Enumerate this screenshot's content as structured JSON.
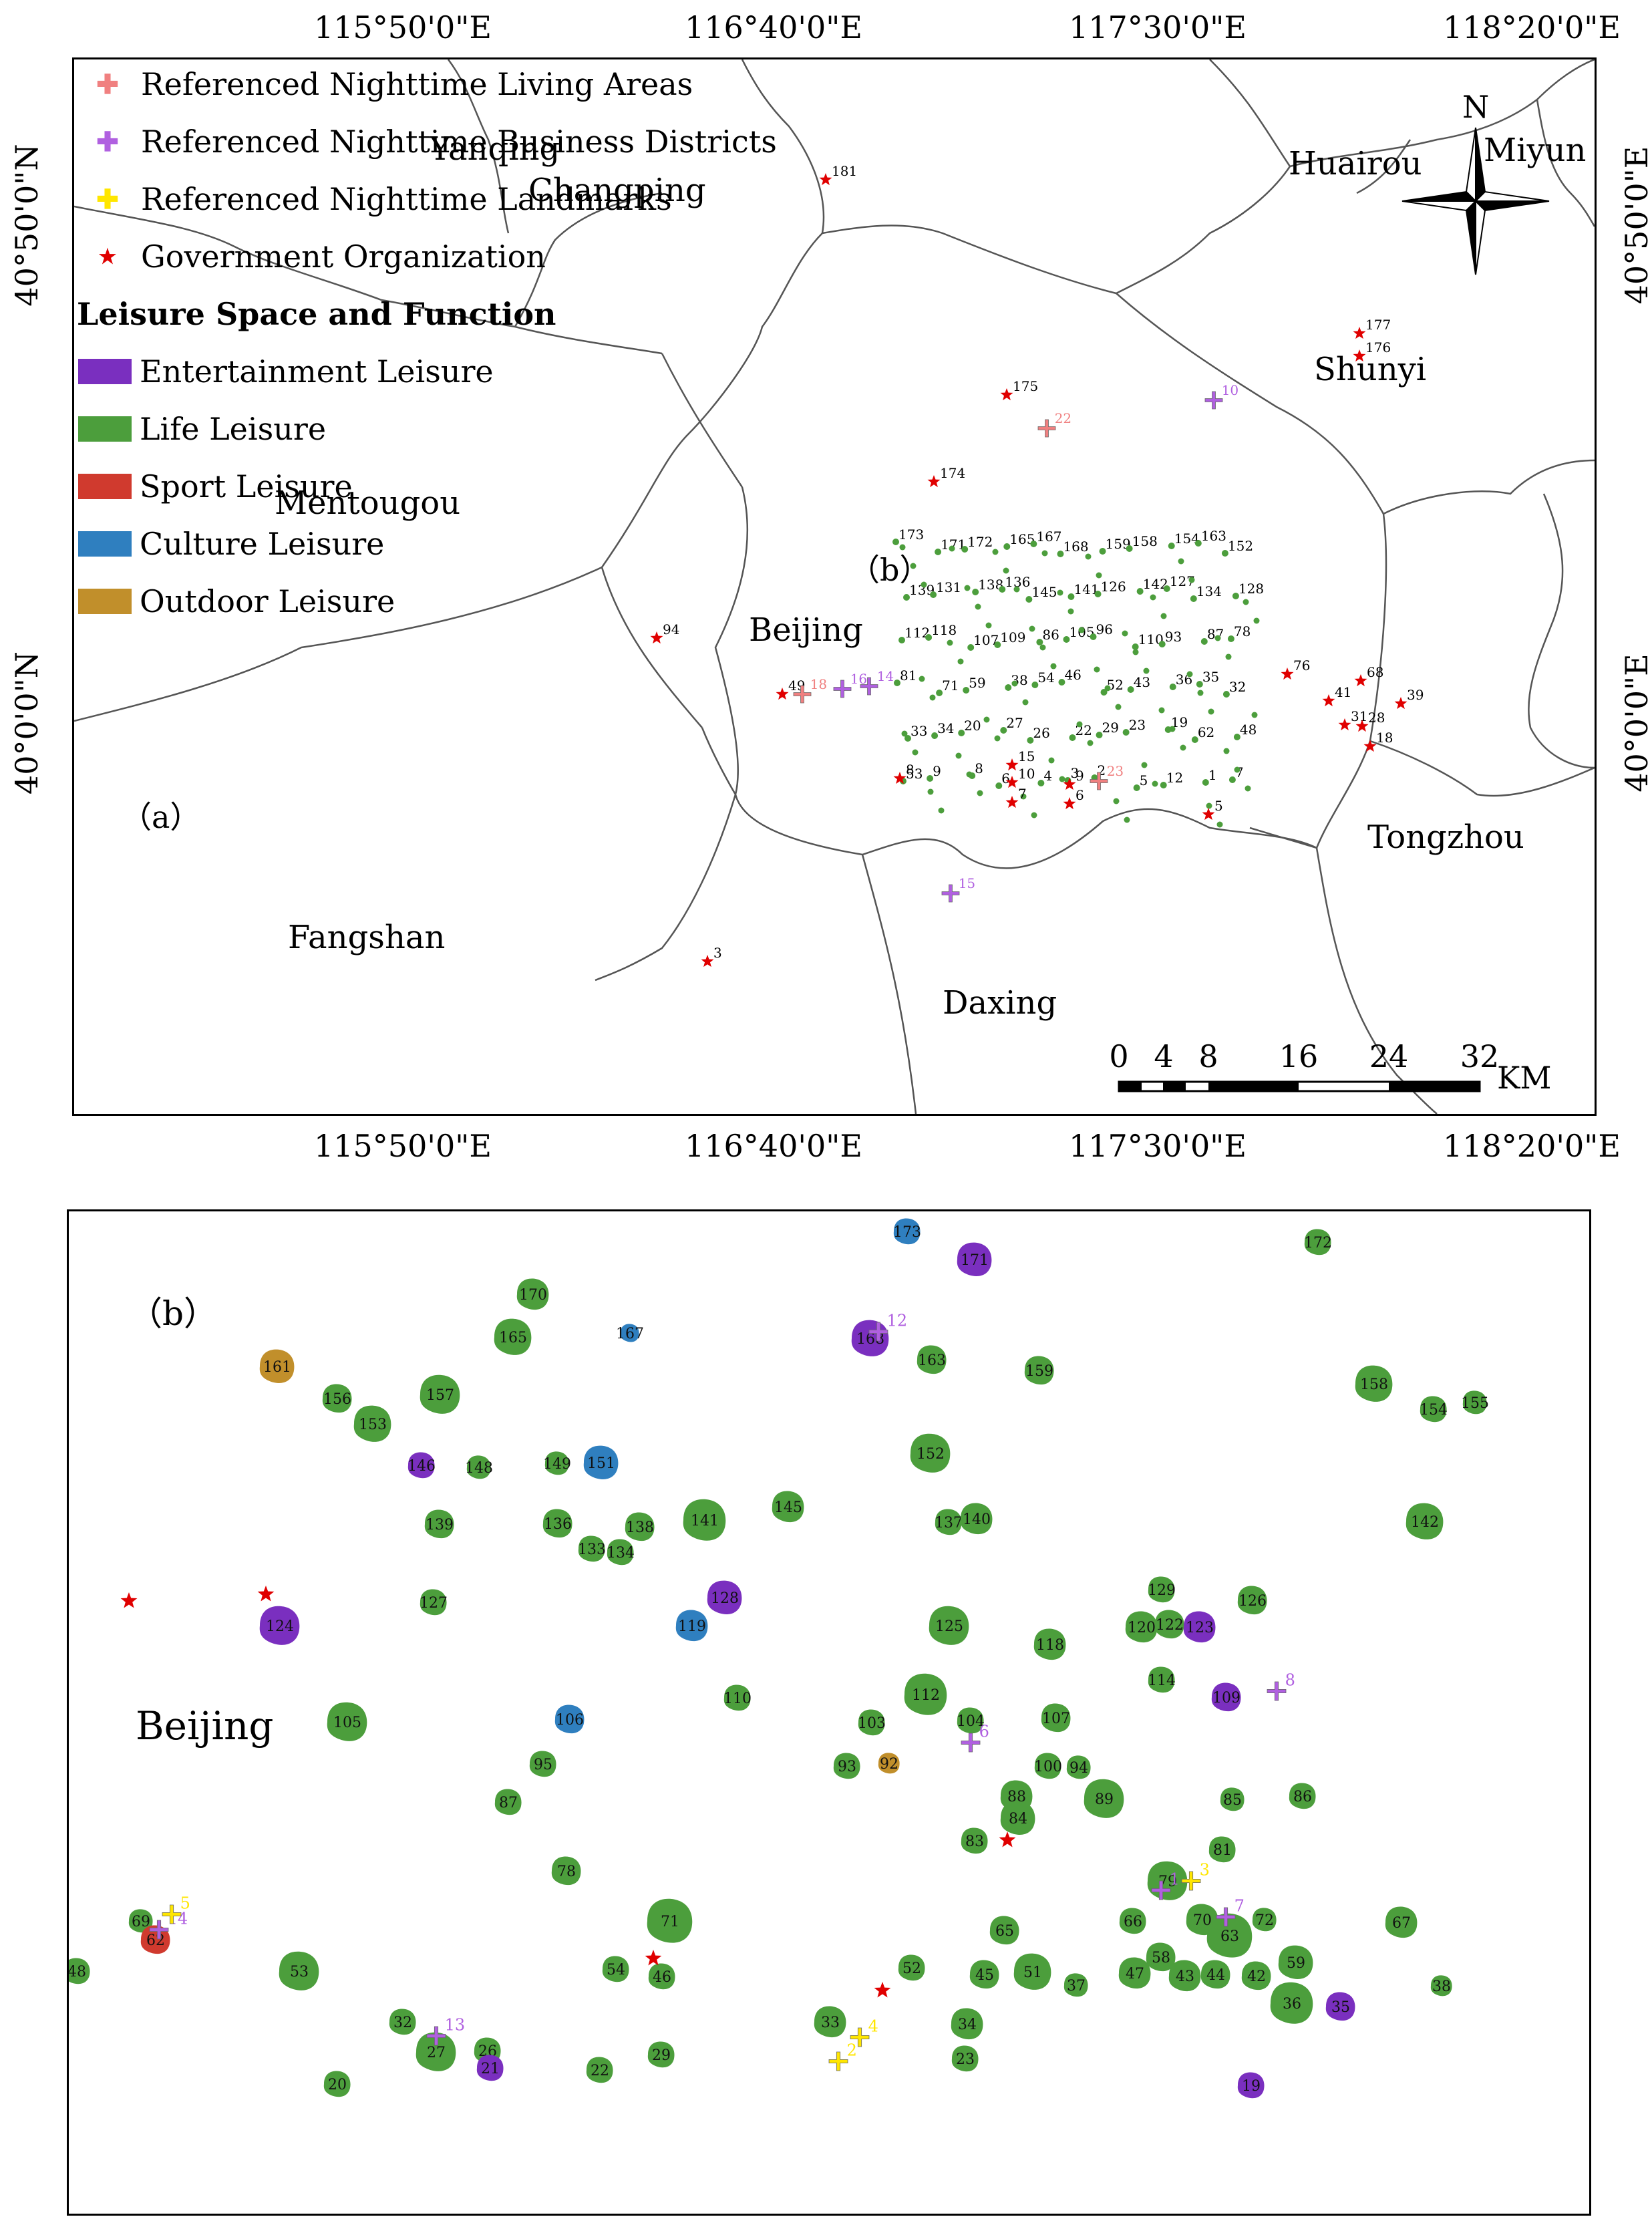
{
  "map_a": {
    "panel_label": "（a）",
    "top_longitudes": [
      "115°50'0\"E",
      "116°40'0\"E",
      "117°30'0\"E",
      "118°20'0\"E"
    ],
    "bottom_longitudes": [
      "115°50'0\"E",
      "116°40'0\"E",
      "117°30'0\"E",
      "118°20'0\"E"
    ],
    "left_latitudes": [
      "40°50'0\"N",
      "40°0'0\"N"
    ],
    "right_latitudes": [
      "40°50'0\"E",
      "40°0'0\"E"
    ],
    "districts": [
      "Yanqing",
      "Changping",
      "Huairou",
      "Miyun",
      "Shunyi",
      "Mentougou",
      "Beijing",
      "Tongzhou",
      "Fangshan",
      "Daxing"
    ],
    "subarea_label": "（b）",
    "north_label": "N",
    "scale_bar": {
      "ticks": [
        "0",
        "4",
        "8",
        "16",
        "24",
        "32"
      ],
      "unit": "KM"
    },
    "legend": {
      "point_items": [
        {
          "label": "Referenced Nighttime Living Areas",
          "color": "#f08080"
        },
        {
          "label": "Referenced Nighttime Business Districts",
          "color": "#b060e0"
        },
        {
          "label": "Referenced Nighttime Landmarks",
          "color": "#ffe600"
        },
        {
          "label": "Government Organization",
          "color": "#e00000"
        }
      ],
      "section_title": "Leisure Space and Function",
      "area_items": [
        {
          "label": "Entertainment Leisure",
          "color": "#7a2fbf"
        },
        {
          "label": "Life Leisure",
          "color": "#4c9e3c"
        },
        {
          "label": "Sport Leisure",
          "color": "#d03a2e"
        },
        {
          "label": "Culture Leisure",
          "color": "#2f7fbf"
        },
        {
          "label": "Outdoor Leisure",
          "color": "#c18f2b"
        }
      ]
    },
    "outer_markers": [
      {
        "kind": "gov",
        "label": "181"
      },
      {
        "kind": "gov",
        "label": "177"
      },
      {
        "kind": "gov",
        "label": "176"
      },
      {
        "kind": "business",
        "label": "10"
      },
      {
        "kind": "gov",
        "label": "175"
      },
      {
        "kind": "living",
        "label": "22"
      },
      {
        "kind": "gov",
        "label": "174"
      },
      {
        "kind": "gov",
        "label": "94"
      },
      {
        "kind": "gov",
        "label": "49"
      },
      {
        "kind": "living",
        "label": "18"
      },
      {
        "kind": "business",
        "label": "16"
      },
      {
        "kind": "business",
        "label": "14"
      },
      {
        "kind": "gov",
        "label": "76"
      },
      {
        "kind": "gov",
        "label": "68"
      },
      {
        "kind": "gov",
        "label": "41"
      },
      {
        "kind": "gov",
        "label": "39"
      },
      {
        "kind": "gov",
        "label": "31"
      },
      {
        "kind": "gov",
        "label": "28"
      },
      {
        "kind": "gov",
        "label": "18"
      },
      {
        "kind": "living",
        "label": "23"
      },
      {
        "kind": "gov",
        "label": "15"
      },
      {
        "kind": "gov",
        "label": "10"
      },
      {
        "kind": "gov",
        "label": "9"
      },
      {
        "kind": "gov",
        "label": "7"
      },
      {
        "kind": "gov",
        "label": "6"
      },
      {
        "kind": "gov",
        "label": "3"
      },
      {
        "kind": "gov",
        "label": "5"
      },
      {
        "kind": "business",
        "label": "15"
      },
      {
        "kind": "gov",
        "label": "8"
      }
    ],
    "cluster_labels": [
      "173",
      "171",
      "172",
      "165",
      "167",
      "168",
      "159",
      "158",
      "154",
      "163",
      "152",
      "139",
      "131",
      "138",
      "136",
      "145",
      "141",
      "126",
      "142",
      "127",
      "134",
      "128",
      "112",
      "118",
      "107",
      "109",
      "86",
      "105",
      "96",
      "110",
      "93",
      "87",
      "78",
      "81",
      "71",
      "59",
      "38",
      "54",
      "46",
      "52",
      "43",
      "36",
      "35",
      "32",
      "33",
      "34",
      "20",
      "27",
      "26",
      "22",
      "29",
      "23",
      "19",
      "62",
      "48",
      "53",
      "9",
      "8",
      "6",
      "4",
      "3",
      "2",
      "5",
      "12",
      "1",
      "7"
    ]
  },
  "map_b": {
    "panel_label": "（b）",
    "district_label": "Beijing",
    "patches": [
      {
        "label": "173",
        "type": "culture"
      },
      {
        "label": "171",
        "type": "entertainment"
      },
      {
        "label": "172",
        "type": "life"
      },
      {
        "label": "170",
        "type": "life"
      },
      {
        "label": "165",
        "type": "life"
      },
      {
        "label": "167",
        "type": "culture"
      },
      {
        "label": "168",
        "type": "entertainment"
      },
      {
        "label": "163",
        "type": "life"
      },
      {
        "label": "159",
        "type": "life"
      },
      {
        "label": "158",
        "type": "life"
      },
      {
        "label": "161",
        "type": "outdoor"
      },
      {
        "label": "156",
        "type": "life"
      },
      {
        "label": "157",
        "type": "life"
      },
      {
        "label": "153",
        "type": "life"
      },
      {
        "label": "152",
        "type": "life"
      },
      {
        "label": "154",
        "type": "life"
      },
      {
        "label": "155",
        "type": "life"
      },
      {
        "label": "146",
        "type": "entertainment"
      },
      {
        "label": "148",
        "type": "life"
      },
      {
        "label": "149",
        "type": "life"
      },
      {
        "label": "151",
        "type": "culture"
      },
      {
        "label": "145",
        "type": "life"
      },
      {
        "label": "139",
        "type": "life"
      },
      {
        "label": "136",
        "type": "life"
      },
      {
        "label": "138",
        "type": "life"
      },
      {
        "label": "141",
        "type": "life"
      },
      {
        "label": "137",
        "type": "life"
      },
      {
        "label": "140",
        "type": "life"
      },
      {
        "label": "142",
        "type": "life"
      },
      {
        "label": "133",
        "type": "life"
      },
      {
        "label": "134",
        "type": "life"
      },
      {
        "label": "127",
        "type": "life"
      },
      {
        "label": "124",
        "type": "entertainment"
      },
      {
        "label": "128",
        "type": "entertainment"
      },
      {
        "label": "119",
        "type": "culture"
      },
      {
        "label": "125",
        "type": "life"
      },
      {
        "label": "129",
        "type": "life"
      },
      {
        "label": "120",
        "type": "life"
      },
      {
        "label": "122",
        "type": "life"
      },
      {
        "label": "123",
        "type": "entertainment"
      },
      {
        "label": "126",
        "type": "life"
      },
      {
        "label": "118",
        "type": "life"
      },
      {
        "label": "114",
        "type": "life"
      },
      {
        "label": "105",
        "type": "life"
      },
      {
        "label": "106",
        "type": "culture"
      },
      {
        "label": "110",
        "type": "life"
      },
      {
        "label": "112",
        "type": "life"
      },
      {
        "label": "103",
        "type": "life"
      },
      {
        "label": "104",
        "type": "life"
      },
      {
        "label": "107",
        "type": "life"
      },
      {
        "label": "109",
        "type": "entertainment"
      },
      {
        "label": "95",
        "type": "life"
      },
      {
        "label": "93",
        "type": "life"
      },
      {
        "label": "92",
        "type": "outdoor"
      },
      {
        "label": "100",
        "type": "life"
      },
      {
        "label": "94",
        "type": "life"
      },
      {
        "label": "87",
        "type": "life"
      },
      {
        "label": "88",
        "type": "life"
      },
      {
        "label": "84",
        "type": "life"
      },
      {
        "label": "89",
        "type": "life"
      },
      {
        "label": "85",
        "type": "life"
      },
      {
        "label": "86",
        "type": "life"
      },
      {
        "label": "83",
        "type": "life"
      },
      {
        "label": "81",
        "type": "life"
      },
      {
        "label": "78",
        "type": "life"
      },
      {
        "label": "79",
        "type": "life"
      },
      {
        "label": "69",
        "type": "life"
      },
      {
        "label": "62",
        "type": "sport"
      },
      {
        "label": "71",
        "type": "life"
      },
      {
        "label": "72",
        "type": "life"
      },
      {
        "label": "70",
        "type": "life"
      },
      {
        "label": "66",
        "type": "life"
      },
      {
        "label": "65",
        "type": "life"
      },
      {
        "label": "63",
        "type": "life"
      },
      {
        "label": "67",
        "type": "life"
      },
      {
        "label": "48",
        "type": "life"
      },
      {
        "label": "53",
        "type": "life"
      },
      {
        "label": "54",
        "type": "life"
      },
      {
        "label": "46",
        "type": "life"
      },
      {
        "label": "52",
        "type": "life"
      },
      {
        "label": "45",
        "type": "life"
      },
      {
        "label": "51",
        "type": "life"
      },
      {
        "label": "47",
        "type": "life"
      },
      {
        "label": "58",
        "type": "life"
      },
      {
        "label": "43",
        "type": "life"
      },
      {
        "label": "44",
        "type": "life"
      },
      {
        "label": "42",
        "type": "life"
      },
      {
        "label": "59",
        "type": "life"
      },
      {
        "label": "37",
        "type": "life"
      },
      {
        "label": "38",
        "type": "life"
      },
      {
        "label": "36",
        "type": "life"
      },
      {
        "label": "35",
        "type": "entertainment"
      },
      {
        "label": "32",
        "type": "life"
      },
      {
        "label": "33",
        "type": "life"
      },
      {
        "label": "34",
        "type": "life"
      },
      {
        "label": "27",
        "type": "life"
      },
      {
        "label": "26",
        "type": "life"
      },
      {
        "label": "29",
        "type": "life"
      },
      {
        "label": "22",
        "type": "life"
      },
      {
        "label": "21",
        "type": "entertainment"
      },
      {
        "label": "20",
        "type": "life"
      },
      {
        "label": "23",
        "type": "life"
      },
      {
        "label": "19",
        "type": "entertainment"
      }
    ],
    "markers": [
      {
        "kind": "business",
        "label": "12"
      },
      {
        "kind": "business",
        "label": "8"
      },
      {
        "kind": "business",
        "label": "6"
      },
      {
        "kind": "business",
        "label": "1"
      },
      {
        "kind": "business",
        "label": "7"
      },
      {
        "kind": "business",
        "label": "14"
      },
      {
        "kind": "business",
        "label": "13"
      },
      {
        "kind": "landmark",
        "label": "3"
      },
      {
        "kind": "landmark",
        "label": "5"
      },
      {
        "kind": "landmark",
        "label": "4"
      },
      {
        "kind": "landmark",
        "label": "2"
      },
      {
        "kind": "gov",
        "label": ""
      },
      {
        "kind": "gov",
        "label": ""
      },
      {
        "kind": "gov",
        "label": ""
      },
      {
        "kind": "gov",
        "label": ""
      },
      {
        "kind": "gov",
        "label": ""
      }
    ]
  }
}
